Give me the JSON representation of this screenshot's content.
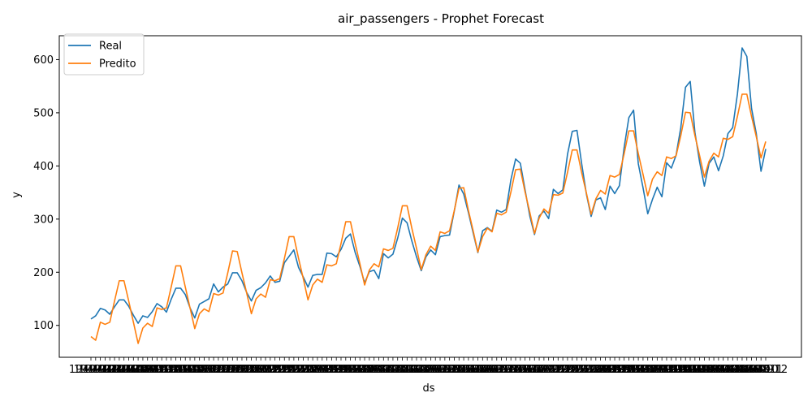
{
  "chart_data": {
    "type": "line",
    "title": "air_passengers - Prophet Forecast",
    "xlabel": "ds",
    "ylabel": "y",
    "ylim": [
      40,
      645
    ],
    "yticks": [
      100,
      200,
      300,
      400,
      500,
      600
    ],
    "grid": false,
    "legend_position": "top-left",
    "x_tick_labels": [
      "1949-01",
      "1949-02",
      "1949-03",
      "1949-04",
      "1949-05",
      "1949-06",
      "1949-07",
      "1949-08",
      "1949-09",
      "1949-10",
      "1949-11",
      "1949-12",
      "1950-01",
      "1950-02",
      "1950-03",
      "1950-04",
      "1950-05",
      "1950-06",
      "1950-07",
      "1950-08",
      "1950-09",
      "1950-10",
      "1950-11",
      "1950-12",
      "1951-01",
      "1951-02",
      "1951-03",
      "1951-04",
      "1951-05",
      "1951-06",
      "1951-07",
      "1951-08",
      "1951-09",
      "1951-10",
      "1951-11",
      "1951-12",
      "1952-01",
      "1952-02",
      "1952-03",
      "1952-04",
      "1952-05",
      "1952-06",
      "1952-07",
      "1952-08",
      "1952-09",
      "1952-10",
      "1952-11",
      "1952-12",
      "1953-01",
      "1953-02",
      "1953-03",
      "1953-04",
      "1953-05",
      "1953-06",
      "1953-07",
      "1953-08",
      "1953-09",
      "1953-10",
      "1953-11",
      "1953-12",
      "1954-01",
      "1954-02",
      "1954-03",
      "1954-04",
      "1954-05",
      "1954-06",
      "1954-07",
      "1954-08",
      "1954-09",
      "1954-10",
      "1954-11",
      "1954-12",
      "1955-01",
      "1955-02",
      "1955-03",
      "1955-04",
      "1955-05",
      "1955-06",
      "1955-07",
      "1955-08",
      "1955-09",
      "1955-10",
      "1955-11",
      "1955-12",
      "1956-01",
      "1956-02",
      "1956-03",
      "1956-04",
      "1956-05",
      "1956-06",
      "1956-07",
      "1956-08",
      "1956-09",
      "1956-10",
      "1956-11",
      "1956-12",
      "1957-01",
      "1957-02",
      "1957-03",
      "1957-04",
      "1957-05",
      "1957-06",
      "1957-07",
      "1957-08",
      "1957-09",
      "1957-10",
      "1957-11",
      "1957-12",
      "1958-01",
      "1958-02",
      "1958-03",
      "1958-04",
      "1958-05",
      "1958-06",
      "1958-07",
      "1958-08",
      "1958-09",
      "1958-10",
      "1958-11",
      "1958-12",
      "1959-01",
      "1959-02",
      "1959-03",
      "1959-04",
      "1959-05",
      "1959-06",
      "1959-07",
      "1959-08",
      "1959-09",
      "1959-10",
      "1959-11",
      "1959-12",
      "1960-01",
      "1960-02",
      "1960-03",
      "1960-04",
      "1960-05",
      "1960-06",
      "1960-07",
      "1960-08",
      "1960-09",
      "1960-10",
      "1960-11",
      "1960-12"
    ],
    "series": [
      {
        "name": "Real",
        "color": "#1f77b4",
        "values": [
          112,
          118,
          132,
          129,
          121,
          135,
          148,
          148,
          136,
          119,
          104,
          118,
          115,
          126,
          141,
          135,
          125,
          149,
          170,
          170,
          158,
          133,
          114,
          140,
          145,
          150,
          178,
          163,
          172,
          178,
          199,
          199,
          184,
          162,
          146,
          166,
          171,
          180,
          193,
          181,
          183,
          218,
          230,
          242,
          209,
          191,
          172,
          194,
          196,
          196,
          236,
          235,
          229,
          243,
          264,
          272,
          237,
          211,
          180,
          201,
          204,
          188,
          235,
          227,
          234,
          264,
          302,
          293,
          259,
          229,
          203,
          229,
          242,
          233,
          267,
          269,
          270,
          315,
          364,
          347,
          312,
          274,
          237,
          278,
          284,
          277,
          317,
          313,
          318,
          374,
          413,
          405,
          355,
          306,
          271,
          306,
          315,
          301,
          356,
          348,
          355,
          422,
          465,
          467,
          404,
          347,
          305,
          336,
          340,
          318,
          362,
          348,
          363,
          435,
          491,
          505,
          404,
          359,
          310,
          337,
          360,
          342,
          406,
          396,
          420,
          472,
          548,
          559,
          463,
          407,
          362,
          405,
          417,
          391,
          419,
          461,
          472,
          535,
          622,
          606,
          508,
          461,
          390,
          432
        ]
      },
      {
        "name": "Predito",
        "color": "#ff7f0e",
        "values": [
          79,
          72,
          106,
          102,
          106,
          146,
          184,
          184,
          146,
          106,
          66,
          95,
          104,
          98,
          133,
          130,
          133,
          172,
          212,
          212,
          172,
          133,
          94,
          122,
          131,
          126,
          160,
          157,
          161,
          199,
          240,
          239,
          199,
          161,
          122,
          150,
          159,
          153,
          186,
          184,
          188,
          226,
          267,
          267,
          226,
          188,
          148,
          176,
          187,
          181,
          214,
          212,
          216,
          254,
          295,
          295,
          254,
          216,
          176,
          204,
          216,
          210,
          244,
          241,
          245,
          283,
          325,
          325,
          283,
          245,
          205,
          233,
          249,
          241,
          276,
          273,
          278,
          316,
          358,
          359,
          316,
          278,
          238,
          267,
          283,
          276,
          311,
          308,
          313,
          351,
          393,
          394,
          351,
          313,
          273,
          302,
          319,
          311,
          346,
          345,
          349,
          388,
          430,
          430,
          387,
          349,
          309,
          338,
          354,
          347,
          382,
          379,
          384,
          423,
          466,
          466,
          423,
          384,
          344,
          375,
          389,
          382,
          417,
          414,
          419,
          457,
          501,
          500,
          457,
          419,
          379,
          409,
          424,
          417,
          452,
          450,
          455,
          493,
          535,
          535,
          493,
          455,
          415,
          446
        ]
      }
    ]
  }
}
